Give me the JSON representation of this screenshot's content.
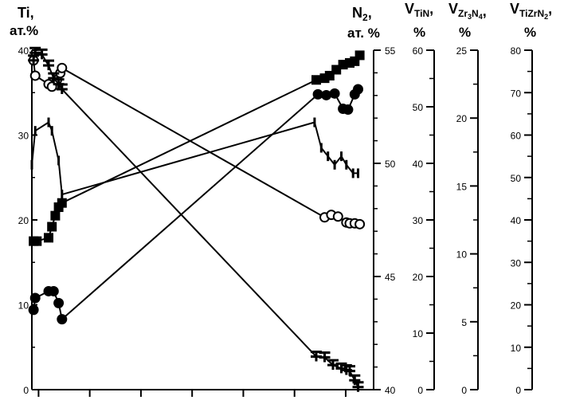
{
  "chart_data": {
    "type": "line",
    "x_range": [
      0,
      100
    ],
    "axes": {
      "ti": {
        "label": [
          "Ti,",
          "ат.%"
        ],
        "range": [
          0,
          40
        ],
        "ticks": [
          0,
          10,
          20,
          30,
          40
        ]
      },
      "n2": {
        "label": [
          "N",
          "2",
          ",",
          "ат. %"
        ],
        "range": [
          40,
          55
        ],
        "ticks": [
          40,
          45,
          50,
          55
        ]
      },
      "vtin": {
        "label": [
          "V",
          "TiN",
          ",",
          "%"
        ],
        "range": [
          0,
          60
        ],
        "ticks": [
          0,
          10,
          20,
          30,
          40,
          50,
          60
        ]
      },
      "vzr3n4": {
        "label": [
          "V",
          "Zr",
          "3",
          "N",
          "4",
          ",",
          "%"
        ],
        "range": [
          0,
          25
        ],
        "ticks": [
          0,
          5,
          10,
          15,
          20,
          25
        ]
      },
      "vtizrn2": {
        "label": [
          "V",
          "TiZrN",
          "2",
          ",",
          "%"
        ],
        "range": [
          0,
          80
        ],
        "ticks": [
          0,
          10,
          20,
          30,
          40,
          50,
          60,
          70,
          80
        ]
      }
    },
    "series": [
      {
        "marker": "open-circle",
        "axis": "ti",
        "x": [
          0.5,
          1,
          5,
          6,
          7.5,
          8.5,
          9,
          87.5,
          89.5,
          91.5,
          94,
          95,
          96.5,
          98
        ],
        "y": [
          38.8,
          37,
          36,
          35.7,
          36.5,
          37.3,
          37.9,
          20.3,
          20.6,
          20.4,
          19.7,
          19.6,
          19.6,
          19.5
        ]
      },
      {
        "marker": "filled-circle",
        "axis": "ti",
        "x": [
          0.5,
          1,
          5,
          6.5,
          8,
          9,
          85.5,
          88,
          90.5,
          93,
          94.5,
          96.5,
          97.5
        ],
        "y": [
          9.4,
          10.8,
          11.6,
          11.6,
          10.2,
          8.3,
          34.8,
          34.7,
          34.9,
          33.1,
          33,
          34.8,
          35.4
        ]
      },
      {
        "marker": "filled-square",
        "axis": "ti",
        "x": [
          0.5,
          1.5,
          5,
          6,
          7,
          8,
          9,
          85,
          87.5,
          89,
          91,
          93,
          95,
          96.5,
          98
        ],
        "y": [
          17.5,
          17.5,
          17.9,
          19.2,
          20.5,
          21.5,
          22,
          36.5,
          36.7,
          37,
          37.7,
          38.3,
          38.5,
          38.7,
          39.4
        ]
      },
      {
        "marker": "cross",
        "axis": "ti",
        "x": [
          0.5,
          1,
          3,
          5,
          6.5,
          8,
          9,
          85,
          87.5,
          90,
          92.5,
          94,
          95,
          96.5,
          97.5
        ],
        "y": [
          38.8,
          39.7,
          39.5,
          38.2,
          36.7,
          36,
          35.4,
          3.9,
          3.8,
          2.9,
          2.5,
          2.3,
          2.2,
          1.1,
          0.3
        ]
      },
      {
        "marker": "tick",
        "axis": "ti",
        "x": [
          0,
          1,
          5,
          6,
          8,
          9,
          84.5,
          86.5,
          88.5,
          90.5,
          92.5,
          94,
          96,
          97.5
        ],
        "y": [
          26.5,
          30.5,
          31.5,
          30.5,
          27,
          23,
          31.5,
          28.5,
          27.5,
          26.5,
          27.5,
          26.5,
          25.5,
          25.5
        ]
      }
    ]
  }
}
